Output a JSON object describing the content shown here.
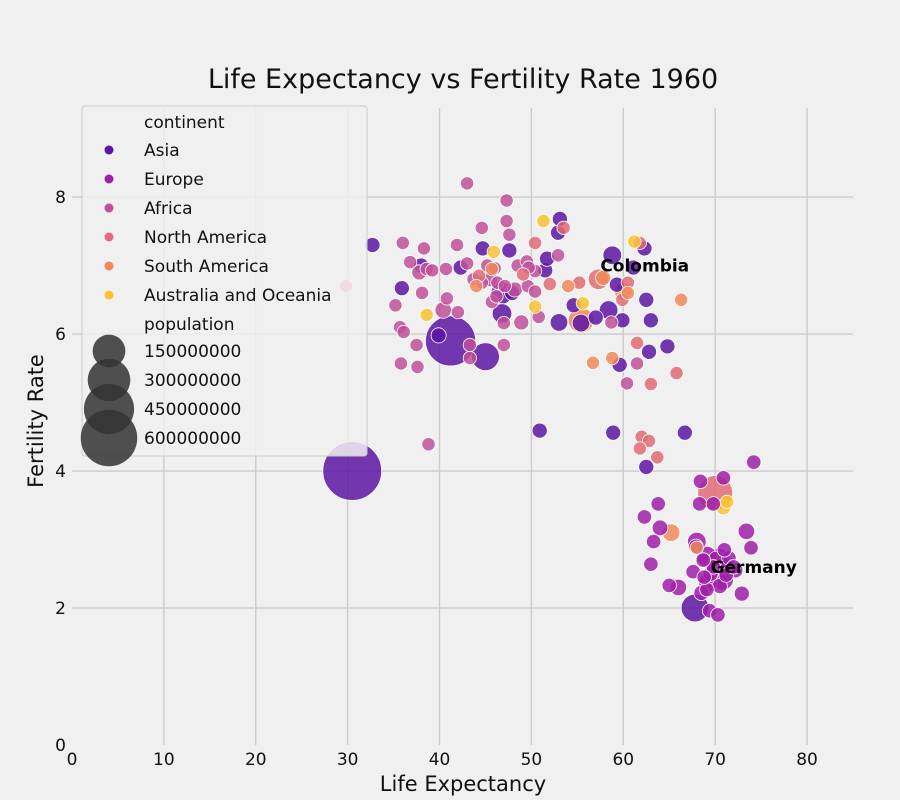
{
  "chart_data": {
    "type": "scatter",
    "title": "Life Expectancy vs Fertility Rate 1960",
    "xlabel": "Life Expectancy",
    "ylabel": "Fertility Rate",
    "xlim": [
      0,
      85
    ],
    "ylim": [
      0,
      9.3
    ],
    "xticks": [
      "0",
      "10",
      "20",
      "30",
      "40",
      "50",
      "60",
      "70",
      "80"
    ],
    "yticks": [
      "0",
      "2",
      "4",
      "6",
      "8"
    ],
    "grid": true,
    "legend": {
      "placement": "top-left",
      "hue_title": "continent",
      "size_title": "population",
      "size_entries": [
        {
          "label": "150000000",
          "value": 150000000
        },
        {
          "label": "300000000",
          "value": 300000000
        },
        {
          "label": "450000000",
          "value": 450000000
        },
        {
          "label": "600000000",
          "value": 600000000
        }
      ]
    },
    "series": [
      {
        "name": "Asia",
        "color": "#5c15a3",
        "points": [
          [
            30.5,
            4.0,
            660000000
          ],
          [
            41.2,
            5.9,
            450000000
          ],
          [
            45,
            5.67,
            95000000
          ],
          [
            46.8,
            6.6,
            45000000
          ],
          [
            46.8,
            6.3,
            30000000
          ],
          [
            67.8,
            2.0,
            93000000
          ],
          [
            32.7,
            7.3,
            10000000
          ],
          [
            35.9,
            6.67,
            10000000
          ],
          [
            38.0,
            7.0,
            10000000
          ],
          [
            39.9,
            5.98,
            10000000
          ],
          [
            42.3,
            6.97,
            10000000
          ],
          [
            44.7,
            7.25,
            10000000
          ],
          [
            47.6,
            7.22,
            10000000
          ],
          [
            50.9,
            4.59,
            10000000
          ],
          [
            51.5,
            6.93,
            10000000
          ],
          [
            52.9,
            7.48,
            10000000
          ],
          [
            53.1,
            7.68,
            10000000
          ],
          [
            54.6,
            6.42,
            10000000
          ],
          [
            55.4,
            6.16,
            20000000
          ],
          [
            57.0,
            6.24,
            10000000
          ],
          [
            58.4,
            6.35,
            25000000
          ],
          [
            58.8,
            7.15,
            25000000
          ],
          [
            59.3,
            6.72,
            10000000
          ],
          [
            59.6,
            5.55,
            10000000
          ],
          [
            59.9,
            6.2,
            10000000
          ],
          [
            61.1,
            6.97,
            10000000
          ],
          [
            62.3,
            7.25,
            10000000
          ],
          [
            62.5,
            6.5,
            10000000
          ],
          [
            62.8,
            5.74,
            10000000
          ],
          [
            63.0,
            6.2,
            10000000
          ],
          [
            64.8,
            5.82,
            10000000
          ],
          [
            58.9,
            4.56,
            10000000
          ],
          [
            66.7,
            4.56,
            10000000
          ],
          [
            62.5,
            4.06,
            10000000
          ],
          [
            51.7,
            7.1,
            10000000
          ],
          [
            47.9,
            6.6,
            10000000
          ],
          [
            53.0,
            6.17,
            20000000
          ]
        ]
      },
      {
        "name": "Europe",
        "color": "#a01fa8",
        "points": [
          [
            70.4,
            2.7,
            55000000
          ],
          [
            70.8,
            2.42,
            45000000
          ],
          [
            69.1,
            2.75,
            35000000
          ],
          [
            68.0,
            2.97,
            25000000
          ],
          [
            69.2,
            2.37,
            25000000
          ],
          [
            71.0,
            2.62,
            15000000
          ],
          [
            72.2,
            2.55,
            10000000
          ],
          [
            73.4,
            3.12,
            15000000
          ],
          [
            73.9,
            2.88,
            8000000
          ],
          [
            64.0,
            3.17,
            12000000
          ],
          [
            66.0,
            2.3,
            15000000
          ],
          [
            65.0,
            2.33,
            8000000
          ],
          [
            63.3,
            2.97,
            8000000
          ],
          [
            63.0,
            2.64,
            8000000
          ],
          [
            63.8,
            3.52,
            8000000
          ],
          [
            62.3,
            3.33,
            8000000
          ],
          [
            68.4,
            3.85,
            8000000
          ],
          [
            68.3,
            3.52,
            8000000
          ],
          [
            69.8,
            3.52,
            8000000
          ],
          [
            70.9,
            3.9,
            8000000
          ],
          [
            74.2,
            4.13,
            8000000
          ],
          [
            69.4,
            1.96,
            8000000
          ],
          [
            70.3,
            1.9,
            8000000
          ],
          [
            72.9,
            2.21,
            10000000
          ],
          [
            68.5,
            2.22,
            10000000
          ],
          [
            69.1,
            2.27,
            8000000
          ],
          [
            70.5,
            2.32,
            10000000
          ],
          [
            71.2,
            2.48,
            8000000
          ],
          [
            69.8,
            2.6,
            8000000
          ],
          [
            68.7,
            2.7,
            8000000
          ],
          [
            71.5,
            2.73,
            8000000
          ],
          [
            67.6,
            2.53,
            8000000
          ],
          [
            68.8,
            2.45,
            8000000
          ],
          [
            70.1,
            2.72,
            10000000
          ],
          [
            71.0,
            2.85,
            8000000
          ],
          [
            67.9,
            2.9,
            8000000
          ],
          [
            72.0,
            2.6,
            8000000
          ],
          [
            69.5,
            2.5,
            10000000
          ]
        ]
      },
      {
        "name": "Africa",
        "color": "#c0509a",
        "points": [
          [
            43.0,
            8.2,
            5000000
          ],
          [
            47.3,
            7.95,
            5000000
          ],
          [
            47.3,
            7.65,
            5000000
          ],
          [
            44.6,
            7.55,
            5000000
          ],
          [
            47.6,
            7.45,
            5000000
          ],
          [
            36.0,
            7.33,
            5000000
          ],
          [
            38.3,
            7.25,
            5000000
          ],
          [
            41.9,
            7.3,
            5000000
          ],
          [
            36.8,
            7.05,
            5000000
          ],
          [
            43.0,
            7.03,
            5000000
          ],
          [
            45.2,
            7.0,
            5000000
          ],
          [
            46.0,
            6.96,
            5000000
          ],
          [
            48.5,
            7.0,
            5000000
          ],
          [
            49.5,
            7.06,
            5000000
          ],
          [
            50.4,
            6.92,
            5000000
          ],
          [
            52.9,
            7.15,
            5000000
          ],
          [
            37.8,
            6.9,
            10000000
          ],
          [
            38.6,
            6.95,
            5000000
          ],
          [
            39.2,
            6.93,
            5000000
          ],
          [
            40.7,
            6.95,
            5000000
          ],
          [
            43.7,
            6.8,
            5000000
          ],
          [
            44.6,
            6.75,
            5000000
          ],
          [
            45.5,
            6.8,
            10000000
          ],
          [
            46.3,
            6.75,
            5000000
          ],
          [
            47.1,
            6.7,
            5000000
          ],
          [
            48.2,
            6.65,
            10000000
          ],
          [
            49.6,
            6.7,
            5000000
          ],
          [
            50.4,
            6.62,
            5000000
          ],
          [
            35.2,
            6.42,
            5000000
          ],
          [
            38.1,
            6.6,
            5000000
          ],
          [
            40.8,
            6.52,
            5000000
          ],
          [
            42.0,
            6.32,
            5000000
          ],
          [
            45.7,
            6.47,
            5000000
          ],
          [
            46.2,
            6.55,
            5000000
          ],
          [
            47.0,
            6.16,
            5000000
          ],
          [
            48.9,
            6.17,
            10000000
          ],
          [
            50.8,
            6.25,
            5000000
          ],
          [
            35.7,
            6.1,
            5000000
          ],
          [
            36.1,
            6.03,
            5000000
          ],
          [
            37.5,
            5.84,
            5000000
          ],
          [
            43.3,
            5.84,
            5000000
          ],
          [
            47.0,
            5.84,
            5000000
          ],
          [
            35.8,
            5.57,
            5000000
          ],
          [
            37.6,
            5.52,
            5000000
          ],
          [
            43.3,
            5.65,
            5000000
          ],
          [
            58.7,
            6.17,
            5000000
          ],
          [
            61.5,
            5.57,
            5000000
          ],
          [
            60.4,
            5.28,
            5000000
          ],
          [
            38.8,
            4.39,
            5000000
          ],
          [
            40.4,
            6.35,
            15000000
          ],
          [
            49.7,
            6.97,
            5000000
          ]
        ]
      },
      {
        "name": "North America",
        "color": "#e26b76",
        "points": [
          [
            70.0,
            3.68,
            180000000
          ],
          [
            57.3,
            6.8,
            35000000
          ],
          [
            29.8,
            6.7,
            5000000
          ],
          [
            50.4,
            7.33,
            5000000
          ],
          [
            53.5,
            7.55,
            5000000
          ],
          [
            61.8,
            7.33,
            5000000
          ],
          [
            49.1,
            6.87,
            5000000
          ],
          [
            52.0,
            6.73,
            5000000
          ],
          [
            60.5,
            6.75,
            5000000
          ],
          [
            59.9,
            6.5,
            5000000
          ],
          [
            61.5,
            5.87,
            5000000
          ],
          [
            63.0,
            5.27,
            5000000
          ],
          [
            65.8,
            5.43,
            5000000
          ],
          [
            62.0,
            4.5,
            5000000
          ],
          [
            62.8,
            4.44,
            5000000
          ],
          [
            61.8,
            4.33,
            5000000
          ],
          [
            63.7,
            4.2,
            5000000
          ],
          [
            55.2,
            6.75,
            5000000
          ],
          [
            44.3,
            6.85,
            5000000
          ]
        ]
      },
      {
        "name": "South America",
        "color": "#f08a5b",
        "points": [
          [
            55.4,
            6.2,
            72000000
          ],
          [
            60.0,
            6.62,
            20000000
          ],
          [
            57.8,
            6.82,
            10000000
          ],
          [
            54.0,
            6.7,
            5000000
          ],
          [
            56.7,
            5.58,
            5000000
          ],
          [
            58.8,
            5.65,
            5000000
          ],
          [
            60.5,
            6.6,
            5000000
          ],
          [
            66.3,
            6.5,
            5000000
          ],
          [
            65.2,
            3.1,
            20000000
          ],
          [
            68.0,
            2.88,
            5000000
          ],
          [
            44.0,
            6.7,
            5000000
          ],
          [
            45.7,
            6.95,
            5000000
          ]
        ]
      },
      {
        "name": "Australia and Oceania",
        "color": "#f8c233",
        "points": [
          [
            70.9,
            3.47,
            10000000
          ],
          [
            71.3,
            3.55,
            5000000
          ],
          [
            51.3,
            7.65,
            5000000
          ],
          [
            61.2,
            7.35,
            5000000
          ],
          [
            45.9,
            7.2,
            5000000
          ],
          [
            50.4,
            6.4,
            5000000
          ],
          [
            55.6,
            6.45,
            5000000
          ],
          [
            38.6,
            6.28,
            5000000
          ]
        ]
      }
    ],
    "annotations": [
      {
        "text": "Colombia",
        "x": 57.5,
        "y": 7.0
      },
      {
        "text": "Germany",
        "x": 69.5,
        "y": 2.6
      }
    ]
  }
}
